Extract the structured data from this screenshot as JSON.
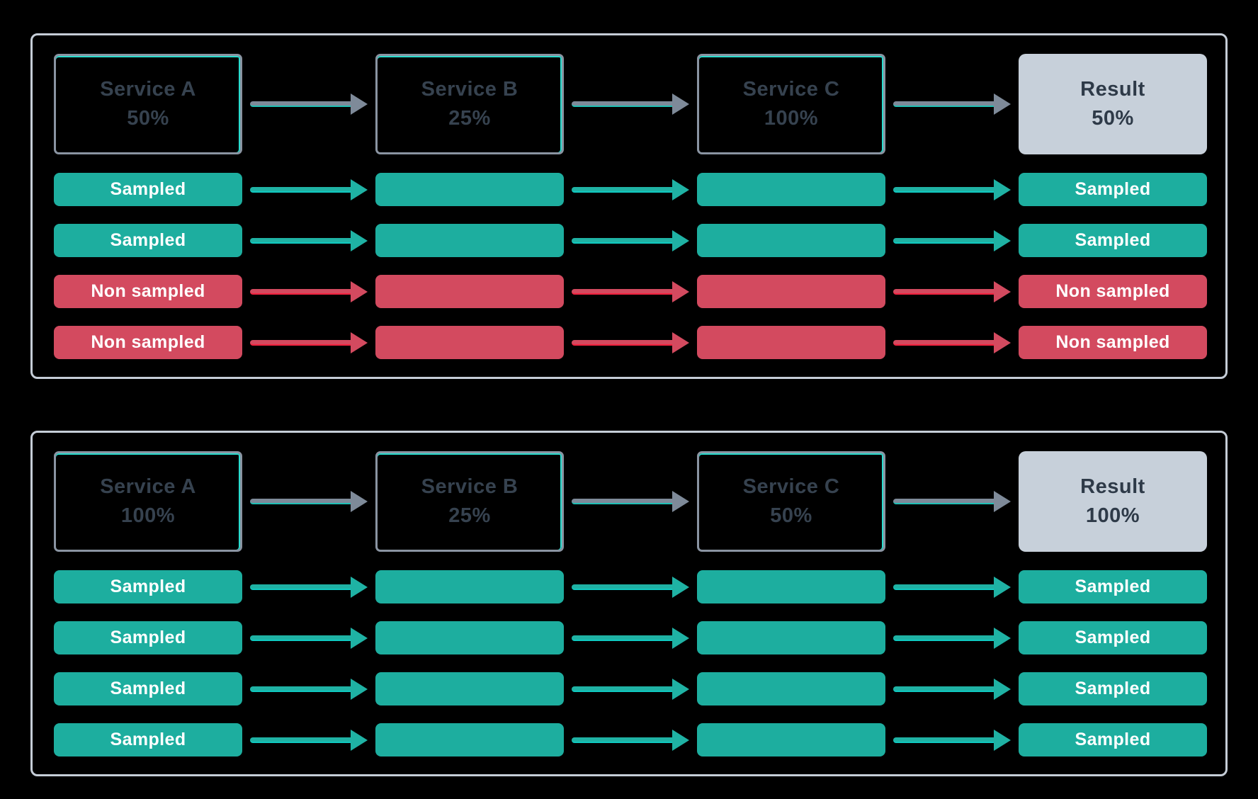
{
  "colors": {
    "background": "#000000",
    "panel_border": "#C5CDD7",
    "service_box_border": "#8A94A2",
    "service_box_highlight": "#29DCCE",
    "service_text": "#36424F",
    "result_fill": "#C7D0DA",
    "result_text": "#2E3A48",
    "sampled_pill": "#1DAE9F",
    "sampled_arrow": "#1FB2A4",
    "sampled_arrow_bright": "#0FC9C0",
    "non_sampled_pill": "#D34A5F",
    "non_sampled_arrow_bright": "#F2213E",
    "gray_arrow": "#7E8A99",
    "gray_arrow_underline": "#1FBFB4",
    "pill_text": "#FFFFFF"
  },
  "panels": [
    {
      "services": [
        {
          "name": "Service A",
          "rate": "50%"
        },
        {
          "name": "Service B",
          "rate": "25%"
        },
        {
          "name": "Service C",
          "rate": "100%"
        }
      ],
      "result": {
        "name": "Result",
        "rate": "50%"
      },
      "rows": [
        {
          "label": "Sampled",
          "status": "sampled"
        },
        {
          "label": "Sampled",
          "status": "sampled"
        },
        {
          "label": "Non sampled",
          "status": "non-sampled"
        },
        {
          "label": "Non sampled",
          "status": "non-sampled"
        }
      ]
    },
    {
      "services": [
        {
          "name": "Service A",
          "rate": "100%"
        },
        {
          "name": "Service B",
          "rate": "25%"
        },
        {
          "name": "Service C",
          "rate": "50%"
        }
      ],
      "result": {
        "name": "Result",
        "rate": "100%"
      },
      "rows": [
        {
          "label": "Sampled",
          "status": "sampled"
        },
        {
          "label": "Sampled",
          "status": "sampled"
        },
        {
          "label": "Sampled",
          "status": "sampled"
        },
        {
          "label": "Sampled",
          "status": "sampled"
        }
      ]
    }
  ]
}
